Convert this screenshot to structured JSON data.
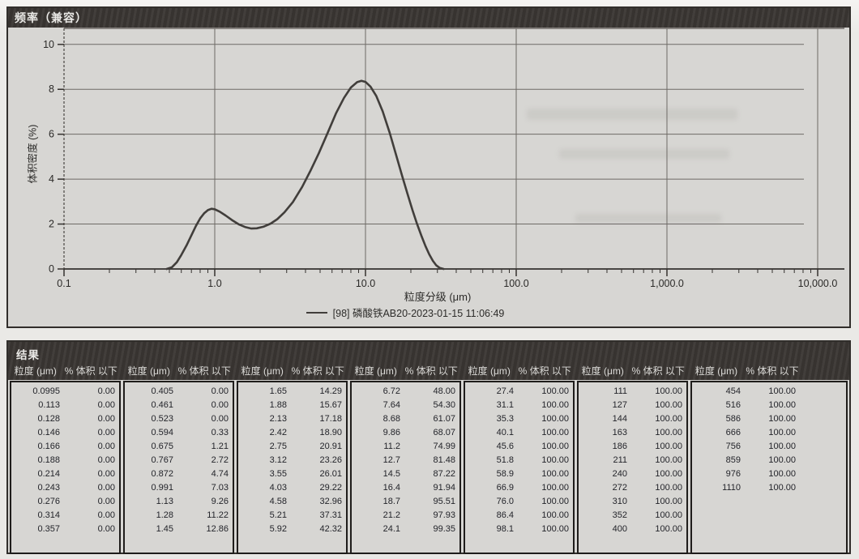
{
  "chart_data": {
    "type": "line",
    "title": "频率（兼容）",
    "xlabel": "粒度分级 (μm)",
    "ylabel": "体积密度 (%)",
    "x_scale": "log",
    "xlim": [
      0.1,
      10000
    ],
    "ylim": [
      0,
      10
    ],
    "x_ticks": [
      "0.1",
      "1.0",
      "10.0",
      "100.0",
      "1,000.0",
      "10,000.0"
    ],
    "x_tick_values": [
      0.1,
      1,
      10,
      100,
      1000,
      10000
    ],
    "y_ticks": [
      "0",
      "2",
      "4",
      "6",
      "8",
      "10"
    ],
    "y_tick_values": [
      0,
      2,
      4,
      6,
      8,
      10
    ],
    "grid": true,
    "legend_position": "bottom",
    "series": [
      {
        "name": "[98] 磷酸铁AB20-2023-01-15 11:06:49",
        "color": "#413e3b",
        "points": [
          [
            0.48,
            0
          ],
          [
            0.52,
            0.08
          ],
          [
            0.56,
            0.3
          ],
          [
            0.6,
            0.62
          ],
          [
            0.65,
            1.05
          ],
          [
            0.7,
            1.5
          ],
          [
            0.75,
            1.92
          ],
          [
            0.8,
            2.25
          ],
          [
            0.85,
            2.48
          ],
          [
            0.9,
            2.62
          ],
          [
            0.95,
            2.68
          ],
          [
            1.0,
            2.66
          ],
          [
            1.08,
            2.55
          ],
          [
            1.18,
            2.38
          ],
          [
            1.3,
            2.18
          ],
          [
            1.45,
            1.98
          ],
          [
            1.6,
            1.86
          ],
          [
            1.75,
            1.8
          ],
          [
            1.9,
            1.81
          ],
          [
            2.1,
            1.88
          ],
          [
            2.35,
            2.02
          ],
          [
            2.6,
            2.22
          ],
          [
            2.9,
            2.52
          ],
          [
            3.3,
            2.98
          ],
          [
            3.8,
            3.65
          ],
          [
            4.3,
            4.35
          ],
          [
            4.9,
            5.15
          ],
          [
            5.6,
            6.05
          ],
          [
            6.4,
            6.95
          ],
          [
            7.2,
            7.62
          ],
          [
            8.0,
            8.08
          ],
          [
            8.8,
            8.32
          ],
          [
            9.4,
            8.38
          ],
          [
            10.0,
            8.33
          ],
          [
            10.8,
            8.12
          ],
          [
            11.8,
            7.7
          ],
          [
            13.0,
            7.02
          ],
          [
            14.5,
            6.05
          ],
          [
            16.0,
            5.05
          ],
          [
            17.5,
            4.15
          ],
          [
            19.0,
            3.35
          ],
          [
            20.5,
            2.62
          ],
          [
            22.0,
            2.0
          ],
          [
            23.5,
            1.48
          ],
          [
            25.0,
            1.02
          ],
          [
            26.5,
            0.65
          ],
          [
            28.0,
            0.36
          ],
          [
            29.5,
            0.16
          ],
          [
            31.0,
            0.05
          ],
          [
            33.0,
            0
          ]
        ]
      }
    ]
  },
  "results": {
    "title": "结果",
    "col_header_size": "粒度 (μm)",
    "col_header_pct": "% 体积 以下",
    "groups": [
      [
        [
          "0.0995",
          "0.00"
        ],
        [
          "0.113",
          "0.00"
        ],
        [
          "0.128",
          "0.00"
        ],
        [
          "0.146",
          "0.00"
        ],
        [
          "0.166",
          "0.00"
        ],
        [
          "0.188",
          "0.00"
        ],
        [
          "0.214",
          "0.00"
        ],
        [
          "0.243",
          "0.00"
        ],
        [
          "0.276",
          "0.00"
        ],
        [
          "0.314",
          "0.00"
        ],
        [
          "0.357",
          "0.00"
        ]
      ],
      [
        [
          "0.405",
          "0.00"
        ],
        [
          "0.461",
          "0.00"
        ],
        [
          "0.523",
          "0.00"
        ],
        [
          "0.594",
          "0.33"
        ],
        [
          "0.675",
          "1.21"
        ],
        [
          "0.767",
          "2.72"
        ],
        [
          "0.872",
          "4.74"
        ],
        [
          "0.991",
          "7.03"
        ],
        [
          "1.13",
          "9.26"
        ],
        [
          "1.28",
          "11.22"
        ],
        [
          "1.45",
          "12.86"
        ]
      ],
      [
        [
          "1.65",
          "14.29"
        ],
        [
          "1.88",
          "15.67"
        ],
        [
          "2.13",
          "17.18"
        ],
        [
          "2.42",
          "18.90"
        ],
        [
          "2.75",
          "20.91"
        ],
        [
          "3.12",
          "23.26"
        ],
        [
          "3.55",
          "26.01"
        ],
        [
          "4.03",
          "29.22"
        ],
        [
          "4.58",
          "32.96"
        ],
        [
          "5.21",
          "37.31"
        ],
        [
          "5.92",
          "42.32"
        ]
      ],
      [
        [
          "6.72",
          "48.00"
        ],
        [
          "7.64",
          "54.30"
        ],
        [
          "8.68",
          "61.07"
        ],
        [
          "9.86",
          "68.07"
        ],
        [
          "11.2",
          "74.99"
        ],
        [
          "12.7",
          "81.48"
        ],
        [
          "14.5",
          "87.22"
        ],
        [
          "16.4",
          "91.94"
        ],
        [
          "18.7",
          "95.51"
        ],
        [
          "21.2",
          "97.93"
        ],
        [
          "24.1",
          "99.35"
        ]
      ],
      [
        [
          "27.4",
          "100.00"
        ],
        [
          "31.1",
          "100.00"
        ],
        [
          "35.3",
          "100.00"
        ],
        [
          "40.1",
          "100.00"
        ],
        [
          "45.6",
          "100.00"
        ],
        [
          "51.8",
          "100.00"
        ],
        [
          "58.9",
          "100.00"
        ],
        [
          "66.9",
          "100.00"
        ],
        [
          "76.0",
          "100.00"
        ],
        [
          "86.4",
          "100.00"
        ],
        [
          "98.1",
          "100.00"
        ]
      ],
      [
        [
          "111",
          "100.00"
        ],
        [
          "127",
          "100.00"
        ],
        [
          "144",
          "100.00"
        ],
        [
          "163",
          "100.00"
        ],
        [
          "186",
          "100.00"
        ],
        [
          "211",
          "100.00"
        ],
        [
          "240",
          "100.00"
        ],
        [
          "272",
          "100.00"
        ],
        [
          "310",
          "100.00"
        ],
        [
          "352",
          "100.00"
        ],
        [
          "400",
          "100.00"
        ]
      ],
      [
        [
          "454",
          "100.00"
        ],
        [
          "516",
          "100.00"
        ],
        [
          "586",
          "100.00"
        ],
        [
          "666",
          "100.00"
        ],
        [
          "756",
          "100.00"
        ],
        [
          "859",
          "100.00"
        ],
        [
          "976",
          "100.00"
        ],
        [
          "1110",
          "100.00"
        ]
      ]
    ]
  }
}
